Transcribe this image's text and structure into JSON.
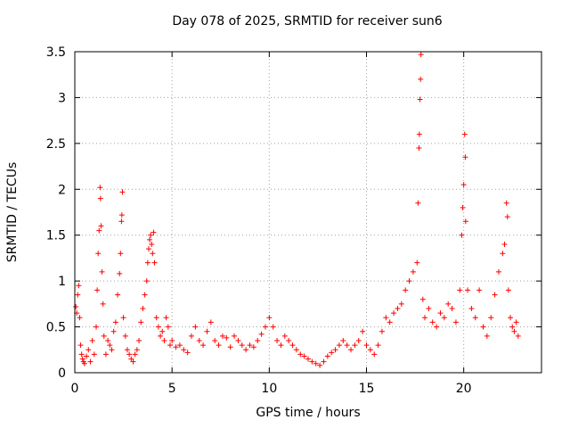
{
  "chart_data": {
    "type": "scatter",
    "title": "Day 078 of 2025, SRMTID for receiver sun6",
    "xlabel": "GPS time / hours",
    "ylabel": "SRMTID / TECUs",
    "xlim": [
      0,
      24
    ],
    "ylim": [
      0,
      3.5
    ],
    "xticks": [
      0,
      5,
      10,
      15,
      20
    ],
    "yticks": [
      0,
      0.5,
      1,
      1.5,
      2,
      2.5,
      3,
      3.5
    ],
    "ytick_labels": [
      "0",
      "0.5",
      "1",
      "1.5",
      "2",
      "2.5",
      "3",
      "3.5"
    ],
    "grid": true,
    "marker": "+",
    "marker_color": "#ff0000",
    "series": [
      {
        "name": "SRMTID",
        "points": [
          [
            0.05,
            0.72
          ],
          [
            0.1,
            0.65
          ],
          [
            0.15,
            0.85
          ],
          [
            0.2,
            0.95
          ],
          [
            0.25,
            0.6
          ],
          [
            0.3,
            0.3
          ],
          [
            0.35,
            0.2
          ],
          [
            0.4,
            0.15
          ],
          [
            0.45,
            0.12
          ],
          [
            0.5,
            0.1
          ],
          [
            0.6,
            0.18
          ],
          [
            0.7,
            0.25
          ],
          [
            0.8,
            0.12
          ],
          [
            0.9,
            0.35
          ],
          [
            1.0,
            0.2
          ],
          [
            1.1,
            0.5
          ],
          [
            1.15,
            0.9
          ],
          [
            1.2,
            1.3
          ],
          [
            1.25,
            1.55
          ],
          [
            1.3,
            2.02
          ],
          [
            1.32,
            1.9
          ],
          [
            1.35,
            1.6
          ],
          [
            1.4,
            1.1
          ],
          [
            1.45,
            0.75
          ],
          [
            1.5,
            0.4
          ],
          [
            1.6,
            0.2
          ],
          [
            1.7,
            0.35
          ],
          [
            1.8,
            0.3
          ],
          [
            1.9,
            0.25
          ],
          [
            2.0,
            0.45
          ],
          [
            2.1,
            0.55
          ],
          [
            2.2,
            0.85
          ],
          [
            2.3,
            1.08
          ],
          [
            2.35,
            1.3
          ],
          [
            2.4,
            1.65
          ],
          [
            2.42,
            1.72
          ],
          [
            2.45,
            1.97
          ],
          [
            2.5,
            0.6
          ],
          [
            2.6,
            0.4
          ],
          [
            2.7,
            0.25
          ],
          [
            2.8,
            0.2
          ],
          [
            2.9,
            0.15
          ],
          [
            3.0,
            0.12
          ],
          [
            3.1,
            0.2
          ],
          [
            3.2,
            0.25
          ],
          [
            3.3,
            0.35
          ],
          [
            3.4,
            0.55
          ],
          [
            3.5,
            0.7
          ],
          [
            3.6,
            0.85
          ],
          [
            3.7,
            1.0
          ],
          [
            3.75,
            1.2
          ],
          [
            3.8,
            1.35
          ],
          [
            3.85,
            1.45
          ],
          [
            3.9,
            1.5
          ],
          [
            3.95,
            1.4
          ],
          [
            4.0,
            1.3
          ],
          [
            4.05,
            1.53
          ],
          [
            4.1,
            1.2
          ],
          [
            4.2,
            0.6
          ],
          [
            4.3,
            0.5
          ],
          [
            4.4,
            0.4
          ],
          [
            4.5,
            0.45
          ],
          [
            4.6,
            0.35
          ],
          [
            4.7,
            0.6
          ],
          [
            4.8,
            0.5
          ],
          [
            4.9,
            0.3
          ],
          [
            5.0,
            0.35
          ],
          [
            5.2,
            0.28
          ],
          [
            5.4,
            0.3
          ],
          [
            5.6,
            0.25
          ],
          [
            5.8,
            0.22
          ],
          [
            6.0,
            0.4
          ],
          [
            6.2,
            0.5
          ],
          [
            6.4,
            0.35
          ],
          [
            6.6,
            0.3
          ],
          [
            6.8,
            0.45
          ],
          [
            7.0,
            0.55
          ],
          [
            7.2,
            0.35
          ],
          [
            7.4,
            0.3
          ],
          [
            7.6,
            0.4
          ],
          [
            7.8,
            0.38
          ],
          [
            8.0,
            0.28
          ],
          [
            8.2,
            0.4
          ],
          [
            8.4,
            0.35
          ],
          [
            8.6,
            0.3
          ],
          [
            8.8,
            0.25
          ],
          [
            9.0,
            0.3
          ],
          [
            9.2,
            0.28
          ],
          [
            9.4,
            0.35
          ],
          [
            9.6,
            0.42
          ],
          [
            9.8,
            0.5
          ],
          [
            10.0,
            0.6
          ],
          [
            10.2,
            0.5
          ],
          [
            10.4,
            0.35
          ],
          [
            10.6,
            0.3
          ],
          [
            10.8,
            0.4
          ],
          [
            11.0,
            0.35
          ],
          [
            11.2,
            0.3
          ],
          [
            11.4,
            0.25
          ],
          [
            11.6,
            0.2
          ],
          [
            11.8,
            0.18
          ],
          [
            12.0,
            0.15
          ],
          [
            12.2,
            0.12
          ],
          [
            12.4,
            0.1
          ],
          [
            12.6,
            0.08
          ],
          [
            12.8,
            0.12
          ],
          [
            13.0,
            0.18
          ],
          [
            13.2,
            0.22
          ],
          [
            13.4,
            0.25
          ],
          [
            13.6,
            0.3
          ],
          [
            13.8,
            0.35
          ],
          [
            14.0,
            0.3
          ],
          [
            14.2,
            0.25
          ],
          [
            14.4,
            0.3
          ],
          [
            14.6,
            0.35
          ],
          [
            14.8,
            0.45
          ],
          [
            15.0,
            0.3
          ],
          [
            15.2,
            0.25
          ],
          [
            15.4,
            0.2
          ],
          [
            15.6,
            0.3
          ],
          [
            15.8,
            0.45
          ],
          [
            16.0,
            0.6
          ],
          [
            16.2,
            0.55
          ],
          [
            16.4,
            0.65
          ],
          [
            16.6,
            0.7
          ],
          [
            16.8,
            0.75
          ],
          [
            17.0,
            0.9
          ],
          [
            17.2,
            1.0
          ],
          [
            17.4,
            1.1
          ],
          [
            17.6,
            1.2
          ],
          [
            17.65,
            1.85
          ],
          [
            17.7,
            2.45
          ],
          [
            17.72,
            2.6
          ],
          [
            17.75,
            2.98
          ],
          [
            17.78,
            3.2
          ],
          [
            17.8,
            3.47
          ],
          [
            17.9,
            0.8
          ],
          [
            18.0,
            0.6
          ],
          [
            18.2,
            0.7
          ],
          [
            18.4,
            0.55
          ],
          [
            18.6,
            0.5
          ],
          [
            18.8,
            0.65
          ],
          [
            19.0,
            0.6
          ],
          [
            19.2,
            0.75
          ],
          [
            19.4,
            0.7
          ],
          [
            19.6,
            0.55
          ],
          [
            19.8,
            0.9
          ],
          [
            19.9,
            1.5
          ],
          [
            19.95,
            1.8
          ],
          [
            20.0,
            2.05
          ],
          [
            20.05,
            2.6
          ],
          [
            20.08,
            2.35
          ],
          [
            20.1,
            1.65
          ],
          [
            20.2,
            0.9
          ],
          [
            20.4,
            0.7
          ],
          [
            20.6,
            0.6
          ],
          [
            20.8,
            0.9
          ],
          [
            21.0,
            0.5
          ],
          [
            21.2,
            0.4
          ],
          [
            21.4,
            0.6
          ],
          [
            21.6,
            0.85
          ],
          [
            21.8,
            1.1
          ],
          [
            22.0,
            1.3
          ],
          [
            22.1,
            1.4
          ],
          [
            22.2,
            1.85
          ],
          [
            22.25,
            1.7
          ],
          [
            22.3,
            0.9
          ],
          [
            22.4,
            0.6
          ],
          [
            22.5,
            0.5
          ],
          [
            22.6,
            0.45
          ],
          [
            22.7,
            0.55
          ],
          [
            22.8,
            0.4
          ]
        ]
      }
    ]
  }
}
